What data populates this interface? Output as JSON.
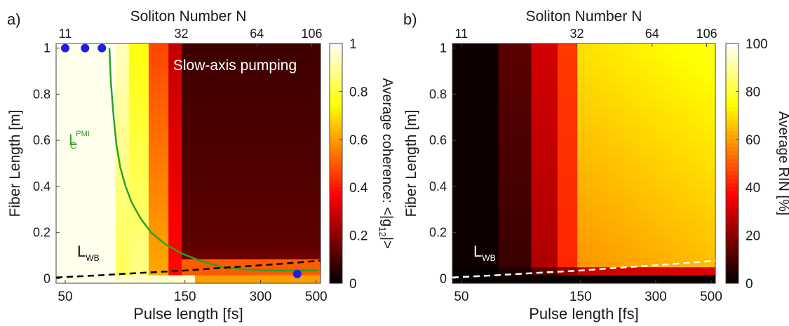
{
  "chart_data": [
    {
      "panel_label": "a)",
      "type": "heatmap",
      "xlabel": "Pulse length [fs]",
      "ylabel": "Fiber Length [m]",
      "top_axis_label": "Soliton Number N",
      "annotation": "Slow-axis pumping",
      "colorbar_label": "Average coherence: <|g",
      "colorbar_label_sub": "12",
      "colorbar_label_end": "|>",
      "colormap": "hot",
      "xscale": "log",
      "xlim": [
        46,
        520
      ],
      "ylim": [
        -0.02,
        1.02
      ],
      "x_ticks": [
        {
          "v": 50,
          "label": "50"
        },
        {
          "v": 150,
          "label": "150"
        },
        {
          "v": 300,
          "label": "300"
        },
        {
          "v": 500,
          "label": "500"
        }
      ],
      "top_ticks": [
        {
          "v": 50,
          "label": "11"
        },
        {
          "v": 145,
          "label": "32"
        },
        {
          "v": 290,
          "label": "64"
        },
        {
          "v": 480,
          "label": "106"
        }
      ],
      "y_ticks": [
        {
          "v": 0,
          "label": "0"
        },
        {
          "v": 0.2,
          "label": "0.2"
        },
        {
          "v": 0.4,
          "label": "0.4"
        },
        {
          "v": 0.6,
          "label": "0.6"
        },
        {
          "v": 0.8,
          "label": "0.8"
        },
        {
          "v": 1,
          "label": "1"
        }
      ],
      "colorbar_ticks": [
        {
          "v": 0,
          "label": "0"
        },
        {
          "v": 0.2,
          "label": "0.2"
        },
        {
          "v": 0.4,
          "label": "0.4"
        },
        {
          "v": 0.6,
          "label": "0.6"
        },
        {
          "v": 0.8,
          "label": "0.8"
        },
        {
          "v": 1,
          "label": "1"
        }
      ],
      "colorbar_range": [
        0,
        1
      ],
      "heatmap_description_value_scale": "coherence 0..1",
      "curves": [
        {
          "name_main": "L",
          "name_sub": "C",
          "name_sup": "PMI",
          "color": "#2ca02c",
          "x": [
            75,
            76,
            78,
            80,
            83,
            87,
            92,
            100,
            110,
            125,
            145,
            170,
            210,
            260,
            330,
            420,
            510
          ],
          "y": [
            1.0,
            0.85,
            0.7,
            0.58,
            0.48,
            0.4,
            0.33,
            0.26,
            0.2,
            0.15,
            0.11,
            0.08,
            0.05,
            0.04,
            0.035,
            0.035,
            0.035
          ]
        },
        {
          "name_main": "L",
          "name_sub": "WB",
          "color": "#000000",
          "dashed": true,
          "x": [
            46,
            70,
            100,
            150,
            200,
            300,
            400,
            520
          ],
          "y": [
            0.005,
            0.015,
            0.025,
            0.035,
            0.045,
            0.058,
            0.068,
            0.078
          ]
        }
      ],
      "points": {
        "color": "#1f1fe0",
        "x": [
          50,
          60,
          70,
          420
        ],
        "y": [
          1.0,
          1.0,
          1.0,
          0.02
        ]
      }
    },
    {
      "panel_label": "b)",
      "type": "heatmap",
      "xlabel": "Pulse length [fs]",
      "ylabel": "Fiber Length [m]",
      "top_axis_label": "Soliton Number N",
      "colorbar_label": "Average RIN [%]",
      "colormap": "hot",
      "xscale": "log",
      "xlim": [
        46,
        520
      ],
      "ylim": [
        -0.02,
        1.02
      ],
      "x_ticks": [
        {
          "v": 50,
          "label": "50"
        },
        {
          "v": 150,
          "label": "150"
        },
        {
          "v": 300,
          "label": "300"
        },
        {
          "v": 500,
          "label": "500"
        }
      ],
      "top_ticks": [
        {
          "v": 50,
          "label": "11"
        },
        {
          "v": 145,
          "label": "32"
        },
        {
          "v": 290,
          "label": "64"
        },
        {
          "v": 480,
          "label": "106"
        }
      ],
      "y_ticks": [
        {
          "v": 0,
          "label": "0"
        },
        {
          "v": 0.2,
          "label": "0.2"
        },
        {
          "v": 0.4,
          "label": "0.4"
        },
        {
          "v": 0.6,
          "label": "0.6"
        },
        {
          "v": 0.8,
          "label": "0.8"
        },
        {
          "v": 1,
          "label": "1"
        }
      ],
      "colorbar_ticks": [
        {
          "v": 0,
          "label": "0"
        },
        {
          "v": 20,
          "label": "20"
        },
        {
          "v": 40,
          "label": "40"
        },
        {
          "v": 60,
          "label": "60"
        },
        {
          "v": 80,
          "label": "80"
        },
        {
          "v": 100,
          "label": "100"
        }
      ],
      "colorbar_range": [
        0,
        100
      ],
      "curves": [
        {
          "name_main": "L",
          "name_sub": "WB",
          "color": "#ffffff",
          "dashed": true,
          "x": [
            46,
            70,
            100,
            150,
            200,
            300,
            400,
            520
          ],
          "y": [
            0.005,
            0.015,
            0.025,
            0.035,
            0.045,
            0.058,
            0.068,
            0.078
          ]
        }
      ]
    }
  ]
}
